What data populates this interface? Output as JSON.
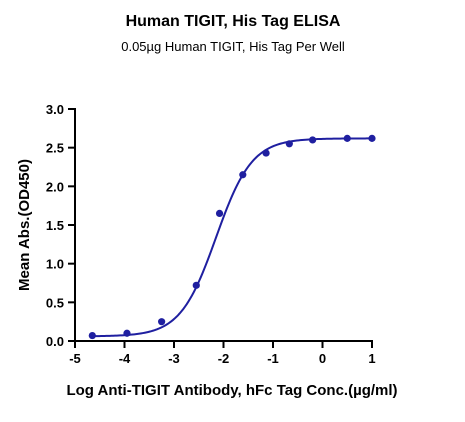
{
  "chart_data": {
    "type": "line",
    "title": "Human TIGIT, His Tag ELISA",
    "subtitle": "0.05µg Human TIGIT, His Tag Per Well",
    "xlabel": "Log Anti-TIGIT Antibody, hFc Tag Conc.(µg/ml)",
    "ylabel": "Mean Abs.(OD450)",
    "xlim": [
      -5,
      1
    ],
    "ylim": [
      0,
      3
    ],
    "xticks": [
      "-5",
      "-4",
      "-3",
      "-2",
      "-1",
      "0",
      "1"
    ],
    "yticks": [
      "0.0",
      "0.5",
      "1.0",
      "1.5",
      "2.0",
      "2.5",
      "3.0"
    ],
    "grid": false,
    "series": [
      {
        "color": "#1f1fa0",
        "x": [
          -4.65,
          -3.95,
          -3.25,
          -2.55,
          -2.08,
          -1.61,
          -1.14,
          -0.67,
          -0.2,
          0.5,
          1.0
        ],
        "y": [
          0.07,
          0.1,
          0.25,
          0.72,
          1.65,
          2.15,
          2.43,
          2.55,
          2.6,
          2.62,
          2.62
        ]
      }
    ],
    "fit_curve": {
      "model": "4PL",
      "bottom": 0.06,
      "top": 2.62,
      "log_ec50": -2.15,
      "hill_slope": 1.2
    }
  }
}
